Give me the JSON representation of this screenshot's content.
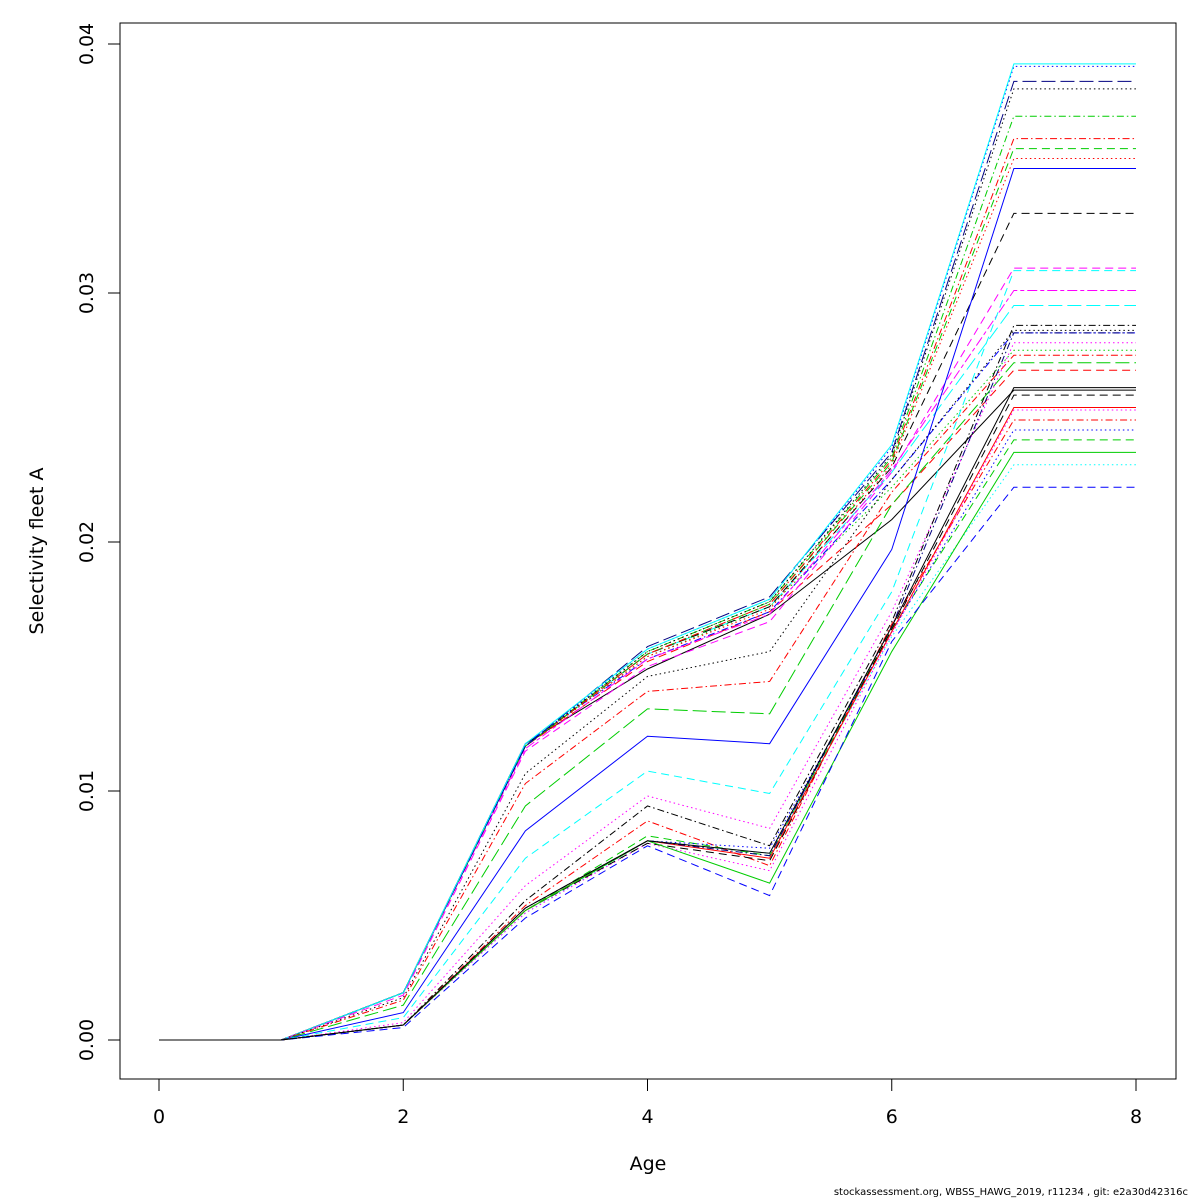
{
  "chart_data": {
    "type": "line",
    "title": "",
    "xlabel": "Age",
    "ylabel": "Selectivity fleet A",
    "xlim": [
      0,
      8
    ],
    "ylim": [
      0,
      0.04
    ],
    "x": [
      0,
      1,
      2,
      3,
      4,
      5,
      6,
      7,
      8
    ],
    "x_ticks": [
      "0",
      "2",
      "4",
      "6",
      "8"
    ],
    "y_ticks": [
      "0.00",
      "0.01",
      "0.02",
      "0.03",
      "0.04"
    ],
    "grid": false,
    "legend": "none",
    "series": [
      {
        "color": "#000000",
        "dash": "solid",
        "values": [
          0,
          0,
          0.0019,
          0.0119,
          0.0149,
          0.0171,
          0.0209,
          0.0261,
          0.0261
        ]
      },
      {
        "color": "#ff0000",
        "dash": "dashed",
        "values": [
          0,
          0,
          0.0019,
          0.0118,
          0.0152,
          0.0172,
          0.0215,
          0.0269,
          0.0269
        ]
      },
      {
        "color": "#00cd00",
        "dash": "dotted",
        "values": [
          0,
          0,
          0.0019,
          0.0118,
          0.0154,
          0.0174,
          0.0222,
          0.0277,
          0.0277
        ]
      },
      {
        "color": "#0000ff",
        "dash": "dotdash",
        "values": [
          0,
          0,
          0.0019,
          0.0119,
          0.0153,
          0.0172,
          0.0225,
          0.0284,
          0.0284
        ]
      },
      {
        "color": "#00ffff",
        "dash": "longdash",
        "values": [
          0,
          0,
          0.0019,
          0.0118,
          0.0155,
          0.0174,
          0.0228,
          0.0295,
          0.0295
        ]
      },
      {
        "color": "#ff00ff",
        "dash": "twodash",
        "values": [
          0,
          0,
          0.0019,
          0.0117,
          0.0153,
          0.0171,
          0.0229,
          0.0301,
          0.0301
        ]
      },
      {
        "color": "#000000",
        "dash": "dashed",
        "values": [
          0,
          0,
          0.0019,
          0.0118,
          0.0155,
          0.0174,
          0.023,
          0.0332,
          0.0332
        ]
      },
      {
        "color": "#ff0000",
        "dash": "dotted",
        "values": [
          0,
          0,
          0.0019,
          0.0118,
          0.0154,
          0.0173,
          0.0231,
          0.0354,
          0.0354
        ]
      },
      {
        "color": "#00cd00",
        "dash": "dashed",
        "values": [
          0,
          0,
          0.0019,
          0.0118,
          0.0155,
          0.0175,
          0.0232,
          0.0358,
          0.0358
        ]
      },
      {
        "color": "#ff0000",
        "dash": "dotdash",
        "values": [
          0,
          0,
          0.0019,
          0.0118,
          0.0155,
          0.0175,
          0.0233,
          0.0362,
          0.0362
        ]
      },
      {
        "color": "#00cd00",
        "dash": "dotdash",
        "values": [
          0,
          0,
          0.0019,
          0.0118,
          0.0156,
          0.0176,
          0.0234,
          0.0371,
          0.0371
        ]
      },
      {
        "color": "#000000",
        "dash": "dotted",
        "values": [
          0,
          0,
          0.0019,
          0.0118,
          0.0156,
          0.0176,
          0.0235,
          0.0382,
          0.0382
        ]
      },
      {
        "color": "#000080",
        "dash": "longdash",
        "values": [
          0,
          0,
          0.0019,
          0.0118,
          0.0158,
          0.0178,
          0.0236,
          0.0385,
          0.0385
        ]
      },
      {
        "color": "#0000ff",
        "dash": "dotted",
        "values": [
          0,
          0,
          0.0019,
          0.0118,
          0.0157,
          0.0177,
          0.0238,
          0.0391,
          0.0391
        ]
      },
      {
        "color": "#00ffff",
        "dash": "solid",
        "values": [
          0,
          0,
          0.0019,
          0.0119,
          0.0157,
          0.0177,
          0.0239,
          0.0392,
          0.0392
        ]
      },
      {
        "color": "#ff00ff",
        "dash": "dashed",
        "values": [
          0,
          0,
          0.0018,
          0.0116,
          0.015,
          0.0168,
          0.0228,
          0.031,
          0.031
        ]
      },
      {
        "color": "#000000",
        "dash": "dotted",
        "values": [
          0,
          0,
          0.0017,
          0.0107,
          0.0146,
          0.0156,
          0.0225,
          0.0285,
          0.0285
        ]
      },
      {
        "color": "#ff0000",
        "dash": "dotdash",
        "values": [
          0,
          0,
          0.0016,
          0.0103,
          0.014,
          0.0144,
          0.022,
          0.0275,
          0.0275
        ]
      },
      {
        "color": "#00cd00",
        "dash": "longdash",
        "values": [
          0,
          0,
          0.0014,
          0.0094,
          0.0133,
          0.0131,
          0.0215,
          0.0272,
          0.0272
        ]
      },
      {
        "color": "#0000ff",
        "dash": "solid",
        "values": [
          0,
          0,
          0.0011,
          0.0084,
          0.0122,
          0.0119,
          0.0197,
          0.035,
          0.035
        ]
      },
      {
        "color": "#00ffff",
        "dash": "dashed",
        "values": [
          0,
          0,
          0.0009,
          0.0073,
          0.0108,
          0.0099,
          0.018,
          0.0309,
          0.0309
        ]
      },
      {
        "color": "#ff00ff",
        "dash": "dotted",
        "values": [
          0,
          0,
          0.0007,
          0.0062,
          0.0098,
          0.0085,
          0.0172,
          0.028,
          0.028
        ]
      },
      {
        "color": "#000000",
        "dash": "dotdash",
        "values": [
          0,
          0,
          0.0006,
          0.0056,
          0.0094,
          0.0078,
          0.0168,
          0.0287,
          0.0287
        ]
      },
      {
        "color": "#ff0000",
        "dash": "dotdash",
        "values": [
          0,
          0,
          0.0006,
          0.0054,
          0.0088,
          0.007,
          0.0167,
          0.0249,
          0.0249
        ]
      },
      {
        "color": "#00cd00",
        "dash": "dashed",
        "values": [
          0,
          0,
          0.0006,
          0.0052,
          0.0082,
          0.0074,
          0.0165,
          0.0241,
          0.0241
        ]
      },
      {
        "color": "#0000ff",
        "dash": "dotted",
        "values": [
          0,
          0,
          0.0006,
          0.0052,
          0.008,
          0.0077,
          0.0164,
          0.0245,
          0.0245
        ]
      },
      {
        "color": "#00ffff",
        "dash": "dotted",
        "values": [
          0,
          0,
          0.0006,
          0.0051,
          0.008,
          0.0075,
          0.0162,
          0.0231,
          0.0231
        ]
      },
      {
        "color": "#ff00ff",
        "dash": "dotted",
        "values": [
          0,
          0,
          0.0006,
          0.0051,
          0.0079,
          0.0068,
          0.0163,
          0.0253,
          0.0253
        ]
      },
      {
        "color": "#000000",
        "dash": "dashed",
        "values": [
          0,
          0,
          0.0006,
          0.0052,
          0.0079,
          0.0072,
          0.0165,
          0.0259,
          0.0259
        ]
      },
      {
        "color": "#ff0000",
        "dash": "solid",
        "values": [
          0,
          0,
          0.0006,
          0.0052,
          0.008,
          0.0073,
          0.0164,
          0.0254,
          0.0254
        ]
      },
      {
        "color": "#00cd00",
        "dash": "solid",
        "values": [
          0,
          0,
          0.0006,
          0.0052,
          0.008,
          0.0063,
          0.0156,
          0.0236,
          0.0236
        ]
      },
      {
        "color": "#0000ff",
        "dash": "dashed",
        "values": [
          0,
          0,
          0.0005,
          0.0049,
          0.0078,
          0.0058,
          0.016,
          0.0222,
          0.0222
        ]
      },
      {
        "color": "#000080",
        "dash": "dotdash",
        "values": [
          0,
          0,
          0.0006,
          0.0053,
          0.008,
          0.0074,
          0.0166,
          0.0284,
          0.0284
        ]
      },
      {
        "color": "#000000",
        "dash": "solid",
        "values": [
          0,
          0,
          0.0006,
          0.0053,
          0.008,
          0.0075,
          0.0166,
          0.0262,
          0.0262
        ]
      }
    ]
  },
  "footer": "stockassessment.org, WBSS_HAWG_2019, r11234 , git: e2a30d42316c"
}
